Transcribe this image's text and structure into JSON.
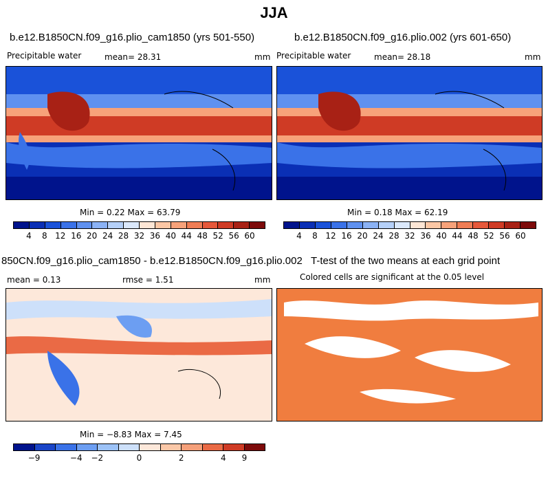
{
  "title": "JJA",
  "panels": {
    "p1": {
      "title": "b.e12.B1850CN.f09_g16.plio_cam1850 (yrs 501-550)",
      "left_label": "Precipitable water",
      "center_label": "mean=  28.31",
      "right_label": "mm",
      "stats": "Min =   0.22  Max =   63.79"
    },
    "p2": {
      "title": "b.e12.B1850CN.f09_g16.plio.002 (yrs 601-650)",
      "left_label": "Precipitable water",
      "center_label": "mean=  28.18",
      "right_label": "mm",
      "stats": "Min =   0.18  Max =   62.19"
    },
    "p3": {
      "title": "850CN.f09_g16.plio_cam1850 - b.e12.B1850CN.f09_g16.plio.002",
      "left_label": "mean =    0.13",
      "center_label": "rmse =    1.51",
      "right_label": "mm",
      "stats": "Min =  −8.83  Max =   7.45"
    },
    "p4": {
      "title": "T-test of the two means at each grid point",
      "subtitle": "Colored cells are significant at the 0.05 level"
    }
  },
  "colorbars": {
    "main": {
      "colors": [
        "#00138c",
        "#0a2fb5",
        "#1a52d9",
        "#3a72e8",
        "#5f91f0",
        "#8bb2f5",
        "#b5d0f8",
        "#dbe8fb",
        "#fde6d5",
        "#fbc7a5",
        "#f7a27a",
        "#f07d55",
        "#e6583a",
        "#cf3b25",
        "#a82115",
        "#7d0a0a"
      ],
      "labels": [
        "4",
        "8",
        "12",
        "16",
        "20",
        "24",
        "28",
        "32",
        "36",
        "40",
        "44",
        "48",
        "52",
        "56",
        "60"
      ]
    },
    "diff": {
      "colors": [
        "#00138c",
        "#1a45c8",
        "#3a72e8",
        "#6c9ef2",
        "#9cc2f7",
        "#cde0fa",
        "#fde8da",
        "#fbc8a8",
        "#f5a07a",
        "#ea6a45",
        "#cf3b25",
        "#7d0a0a"
      ],
      "labels": [
        "−9",
        "−4",
        "−2",
        "0",
        "2",
        "4",
        "9"
      ],
      "label_edges": [
        1,
        3,
        4,
        6,
        8,
        10,
        11
      ]
    }
  },
  "ttest_color": "#f07d3f",
  "background_deep": "#0a2fb5",
  "tropical_red": "#d8401f"
}
